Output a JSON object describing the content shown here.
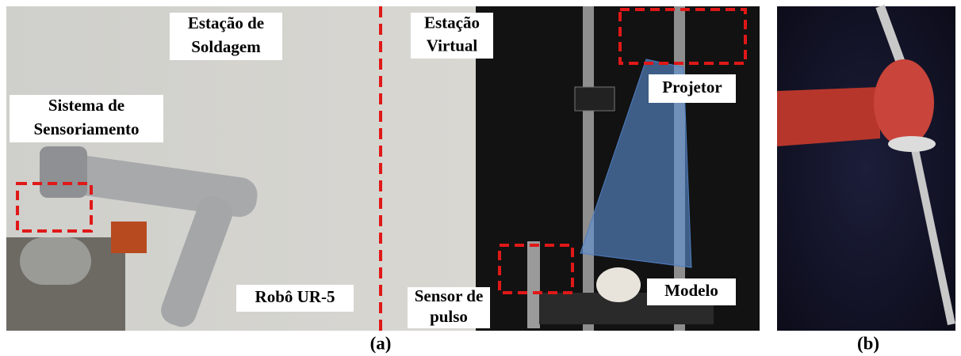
{
  "labels": [
    {
      "lines": [
        "Estação de",
        "Soldagem"
      ]
    },
    {
      "lines": [
        "Estação",
        "Virtual"
      ]
    },
    {
      "lines": [
        "Sistema de",
        "Sensoriamento"
      ]
    },
    {
      "lines": [
        "Projetor"
      ]
    },
    {
      "lines": [
        "Robô UR-5"
      ]
    },
    {
      "lines": [
        "Sensor de",
        "pulso"
      ]
    },
    {
      "lines": [
        "Modelo"
      ]
    }
  ],
  "captions": [
    "(a)",
    "(b)"
  ]
}
